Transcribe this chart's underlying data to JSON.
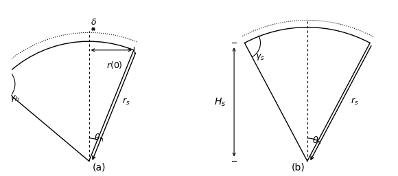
{
  "fig_width": 5.8,
  "fig_height": 2.56,
  "dpi": 100,
  "background": "#ffffff"
}
